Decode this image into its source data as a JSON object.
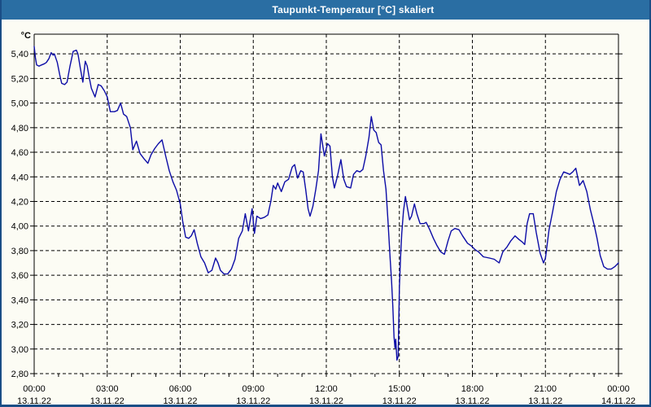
{
  "window": {
    "title": "Taupunkt-Temperatur [°C] skaliert",
    "colors": {
      "header": "#2a6ea3",
      "border": "#1a4e86",
      "background": "#fcfcf4",
      "line": "#0c0ca6",
      "grid": "#000000",
      "text": "#000000",
      "title_text": "#ffffff"
    }
  },
  "chart_data": {
    "type": "line",
    "title": "Taupunkt-Temperatur [°C] skaliert",
    "xlabel": "",
    "ylabel": "°C",
    "ylim": [
      2.8,
      5.56
    ],
    "xlim_hours": [
      0,
      24
    ],
    "grid": "dashed",
    "legend_position": "none",
    "minor_x_tick_every_hours": 1,
    "y_ticks": [
      {
        "value": 5.4,
        "label": "5,40"
      },
      {
        "value": 5.2,
        "label": "5,20"
      },
      {
        "value": 5.0,
        "label": "5,00"
      },
      {
        "value": 4.8,
        "label": "4,80"
      },
      {
        "value": 4.6,
        "label": "4,60"
      },
      {
        "value": 4.4,
        "label": "4,40"
      },
      {
        "value": 4.2,
        "label": "4,20"
      },
      {
        "value": 4.0,
        "label": "4,00"
      },
      {
        "value": 3.8,
        "label": "3,80"
      },
      {
        "value": 3.6,
        "label": "3,60"
      },
      {
        "value": 3.4,
        "label": "3,40"
      },
      {
        "value": 3.2,
        "label": "3,20"
      },
      {
        "value": 3.0,
        "label": "3,00"
      },
      {
        "value": 2.8,
        "label": "2,80"
      }
    ],
    "x_ticks": [
      {
        "hour": 0,
        "time": "00:00",
        "date": "13.11.22"
      },
      {
        "hour": 3,
        "time": "03:00",
        "date": "13.11.22"
      },
      {
        "hour": 6,
        "time": "06:00",
        "date": "13.11.22"
      },
      {
        "hour": 9,
        "time": "09:00",
        "date": "13.11.22"
      },
      {
        "hour": 12,
        "time": "12:00",
        "date": "13.11.22"
      },
      {
        "hour": 15,
        "time": "15:00",
        "date": "13.11.22"
      },
      {
        "hour": 18,
        "time": "18:00",
        "date": "13.11.22"
      },
      {
        "hour": 21,
        "time": "21:00",
        "date": "13.11.22"
      },
      {
        "hour": 24,
        "time": "00:00",
        "date": "14.11.22"
      }
    ],
    "series": [
      {
        "name": "Taupunkt-Temperatur",
        "color": "#0c0ca6",
        "points": [
          [
            0.0,
            5.46
          ],
          [
            0.05,
            5.37
          ],
          [
            0.1,
            5.31
          ],
          [
            0.2,
            5.3
          ],
          [
            0.3,
            5.31
          ],
          [
            0.42,
            5.32
          ],
          [
            0.5,
            5.33
          ],
          [
            0.6,
            5.36
          ],
          [
            0.7,
            5.41
          ],
          [
            0.78,
            5.39
          ],
          [
            0.83,
            5.4
          ],
          [
            0.95,
            5.33
          ],
          [
            1.05,
            5.23
          ],
          [
            1.13,
            5.16
          ],
          [
            1.25,
            5.15
          ],
          [
            1.35,
            5.17
          ],
          [
            1.47,
            5.3
          ],
          [
            1.6,
            5.42
          ],
          [
            1.73,
            5.43
          ],
          [
            1.8,
            5.4
          ],
          [
            1.9,
            5.28
          ],
          [
            2.0,
            5.17
          ],
          [
            2.1,
            5.34
          ],
          [
            2.18,
            5.3
          ],
          [
            2.25,
            5.22
          ],
          [
            2.35,
            5.12
          ],
          [
            2.5,
            5.05
          ],
          [
            2.63,
            5.15
          ],
          [
            2.75,
            5.14
          ],
          [
            2.88,
            5.1
          ],
          [
            3.0,
            5.05
          ],
          [
            3.13,
            4.93
          ],
          [
            3.3,
            4.93
          ],
          [
            3.42,
            4.94
          ],
          [
            3.55,
            5.0
          ],
          [
            3.67,
            4.91
          ],
          [
            3.8,
            4.89
          ],
          [
            3.95,
            4.8
          ],
          [
            4.05,
            4.62
          ],
          [
            4.2,
            4.69
          ],
          [
            4.35,
            4.59
          ],
          [
            4.5,
            4.55
          ],
          [
            4.67,
            4.51
          ],
          [
            4.8,
            4.58
          ],
          [
            4.95,
            4.63
          ],
          [
            5.1,
            4.67
          ],
          [
            5.25,
            4.7
          ],
          [
            5.4,
            4.57
          ],
          [
            5.55,
            4.45
          ],
          [
            5.7,
            4.36
          ],
          [
            5.85,
            4.29
          ],
          [
            6.0,
            4.18
          ],
          [
            6.1,
            4.04
          ],
          [
            6.22,
            3.91
          ],
          [
            6.35,
            3.9
          ],
          [
            6.45,
            3.92
          ],
          [
            6.57,
            3.97
          ],
          [
            6.7,
            3.86
          ],
          [
            6.85,
            3.75
          ],
          [
            7.0,
            3.7
          ],
          [
            7.15,
            3.62
          ],
          [
            7.3,
            3.64
          ],
          [
            7.45,
            3.74
          ],
          [
            7.55,
            3.7
          ],
          [
            7.65,
            3.64
          ],
          [
            7.8,
            3.61
          ],
          [
            7.95,
            3.61
          ],
          [
            8.1,
            3.65
          ],
          [
            8.25,
            3.73
          ],
          [
            8.4,
            3.9
          ],
          [
            8.55,
            3.96
          ],
          [
            8.67,
            4.1
          ],
          [
            8.8,
            3.96
          ],
          [
            8.95,
            4.14
          ],
          [
            9.05,
            3.94
          ],
          [
            9.15,
            4.08
          ],
          [
            9.3,
            4.06
          ],
          [
            9.45,
            4.07
          ],
          [
            9.6,
            4.09
          ],
          [
            9.72,
            4.2
          ],
          [
            9.82,
            4.33
          ],
          [
            9.92,
            4.3
          ],
          [
            10.0,
            4.35
          ],
          [
            10.15,
            4.28
          ],
          [
            10.3,
            4.36
          ],
          [
            10.45,
            4.38
          ],
          [
            10.6,
            4.48
          ],
          [
            10.7,
            4.5
          ],
          [
            10.82,
            4.39
          ],
          [
            10.95,
            4.45
          ],
          [
            11.05,
            4.44
          ],
          [
            11.15,
            4.3
          ],
          [
            11.25,
            4.14
          ],
          [
            11.33,
            4.08
          ],
          [
            11.45,
            4.16
          ],
          [
            11.57,
            4.3
          ],
          [
            11.68,
            4.45
          ],
          [
            11.78,
            4.75
          ],
          [
            11.85,
            4.66
          ],
          [
            11.92,
            4.57
          ],
          [
            12.05,
            4.67
          ],
          [
            12.15,
            4.65
          ],
          [
            12.25,
            4.4
          ],
          [
            12.33,
            4.31
          ],
          [
            12.45,
            4.4
          ],
          [
            12.6,
            4.54
          ],
          [
            12.72,
            4.38
          ],
          [
            12.83,
            4.32
          ],
          [
            13.0,
            4.31
          ],
          [
            13.12,
            4.42
          ],
          [
            13.25,
            4.45
          ],
          [
            13.38,
            4.44
          ],
          [
            13.5,
            4.46
          ],
          [
            13.62,
            4.57
          ],
          [
            13.75,
            4.72
          ],
          [
            13.85,
            4.89
          ],
          [
            13.95,
            4.78
          ],
          [
            14.05,
            4.76
          ],
          [
            14.15,
            4.68
          ],
          [
            14.25,
            4.66
          ],
          [
            14.35,
            4.45
          ],
          [
            14.45,
            4.3
          ],
          [
            14.53,
            4.05
          ],
          [
            14.62,
            3.74
          ],
          [
            14.68,
            3.55
          ],
          [
            14.73,
            3.35
          ],
          [
            14.78,
            3.1
          ],
          [
            14.82,
            3.01
          ],
          [
            14.85,
            3.08
          ],
          [
            14.9,
            2.91
          ],
          [
            14.95,
            2.94
          ],
          [
            15.0,
            3.5
          ],
          [
            15.05,
            3.74
          ],
          [
            15.1,
            3.94
          ],
          [
            15.17,
            4.12
          ],
          [
            15.25,
            4.24
          ],
          [
            15.33,
            4.15
          ],
          [
            15.42,
            4.05
          ],
          [
            15.5,
            4.08
          ],
          [
            15.62,
            4.18
          ],
          [
            15.72,
            4.1
          ],
          [
            15.85,
            4.02
          ],
          [
            16.0,
            4.02
          ],
          [
            16.1,
            4.03
          ],
          [
            16.25,
            3.97
          ],
          [
            16.4,
            3.9
          ],
          [
            16.55,
            3.84
          ],
          [
            16.7,
            3.79
          ],
          [
            16.85,
            3.77
          ],
          [
            17.0,
            3.88
          ],
          [
            17.13,
            3.96
          ],
          [
            17.28,
            3.98
          ],
          [
            17.45,
            3.97
          ],
          [
            17.6,
            3.92
          ],
          [
            17.8,
            3.86
          ],
          [
            17.95,
            3.84
          ],
          [
            18.1,
            3.81
          ],
          [
            18.25,
            3.79
          ],
          [
            18.45,
            3.75
          ],
          [
            18.7,
            3.74
          ],
          [
            18.9,
            3.73
          ],
          [
            19.1,
            3.7
          ],
          [
            19.25,
            3.79
          ],
          [
            19.42,
            3.83
          ],
          [
            19.58,
            3.88
          ],
          [
            19.75,
            3.92
          ],
          [
            19.92,
            3.89
          ],
          [
            20.05,
            3.87
          ],
          [
            20.15,
            3.85
          ],
          [
            20.25,
            4.02
          ],
          [
            20.35,
            4.1
          ],
          [
            20.5,
            4.1
          ],
          [
            20.62,
            3.95
          ],
          [
            20.78,
            3.78
          ],
          [
            20.92,
            3.7
          ],
          [
            21.0,
            3.74
          ],
          [
            21.15,
            3.97
          ],
          [
            21.3,
            4.12
          ],
          [
            21.45,
            4.28
          ],
          [
            21.6,
            4.38
          ],
          [
            21.75,
            4.44
          ],
          [
            21.88,
            4.43
          ],
          [
            22.0,
            4.42
          ],
          [
            22.12,
            4.44
          ],
          [
            22.25,
            4.47
          ],
          [
            22.4,
            4.33
          ],
          [
            22.55,
            4.37
          ],
          [
            22.7,
            4.28
          ],
          [
            22.85,
            4.13
          ],
          [
            23.0,
            4.01
          ],
          [
            23.12,
            3.9
          ],
          [
            23.25,
            3.76
          ],
          [
            23.4,
            3.67
          ],
          [
            23.55,
            3.65
          ],
          [
            23.7,
            3.65
          ],
          [
            23.85,
            3.67
          ],
          [
            24.0,
            3.7
          ]
        ]
      }
    ]
  }
}
